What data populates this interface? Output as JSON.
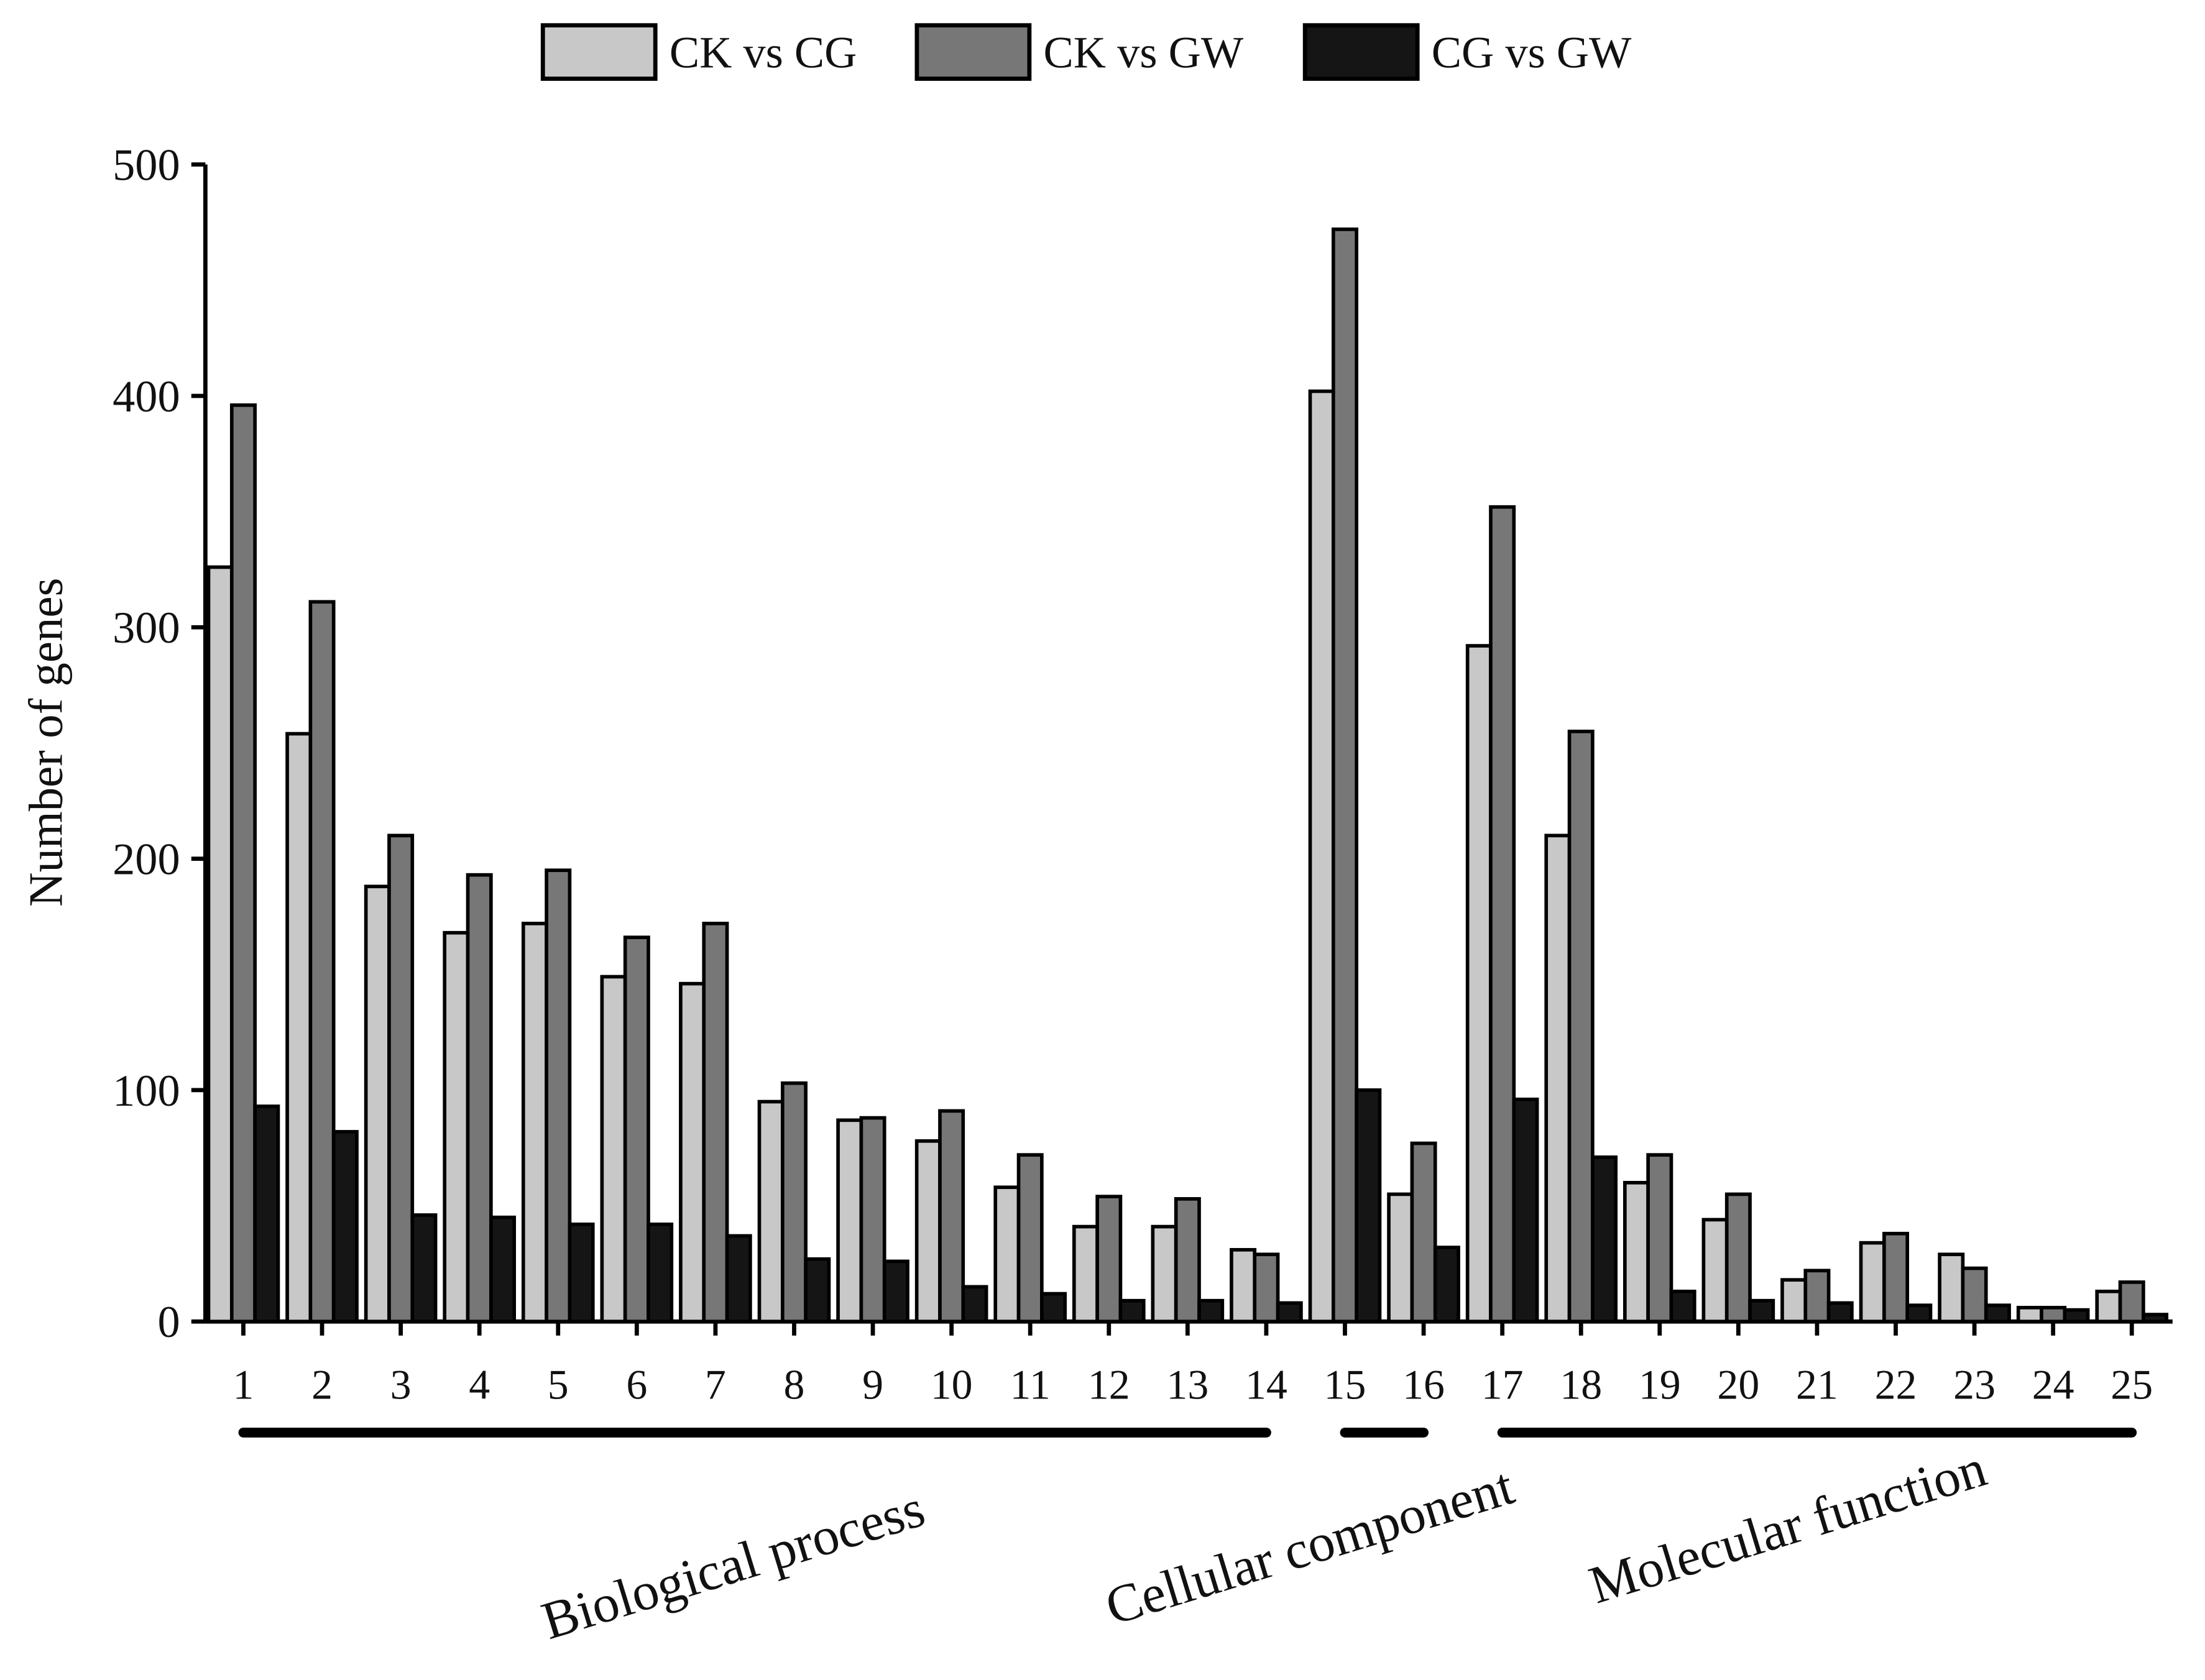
{
  "chart_data": {
    "type": "bar",
    "y_label": "Number of genes",
    "categories": [
      "1",
      "2",
      "3",
      "4",
      "5",
      "6",
      "7",
      "8",
      "9",
      "10",
      "11",
      "12",
      "13",
      "14",
      "15",
      "16",
      "17",
      "18",
      "19",
      "20",
      "21",
      "22",
      "23",
      "24",
      "25"
    ],
    "series": [
      {
        "name": "CK vs CG",
        "color": "#c8c8c8",
        "values": [
          326,
          254,
          188,
          168,
          172,
          149,
          146,
          95,
          87,
          78,
          58,
          41,
          41,
          31,
          402,
          55,
          292,
          210,
          60,
          44,
          18,
          34,
          29,
          6,
          13
        ]
      },
      {
        "name": "CK vs GW",
        "color": "#777777",
        "values": [
          396,
          311,
          210,
          193,
          195,
          166,
          172,
          103,
          88,
          91,
          72,
          54,
          53,
          29,
          472,
          77,
          352,
          255,
          72,
          55,
          22,
          38,
          23,
          6,
          17
        ]
      },
      {
        "name": "CG vs GW",
        "color": "#151515",
        "values": [
          93,
          82,
          46,
          45,
          42,
          42,
          37,
          27,
          26,
          15,
          12,
          9,
          9,
          8,
          100,
          32,
          96,
          71,
          13,
          9,
          8,
          7,
          7,
          5,
          3
        ]
      }
    ],
    "groups": [
      "Biological process",
      "Cellular component",
      "Molecular function"
    ],
    "ylim": [
      0,
      500
    ],
    "yticks": [
      0,
      100,
      200,
      300,
      400,
      500
    ],
    "legend": "top"
  }
}
